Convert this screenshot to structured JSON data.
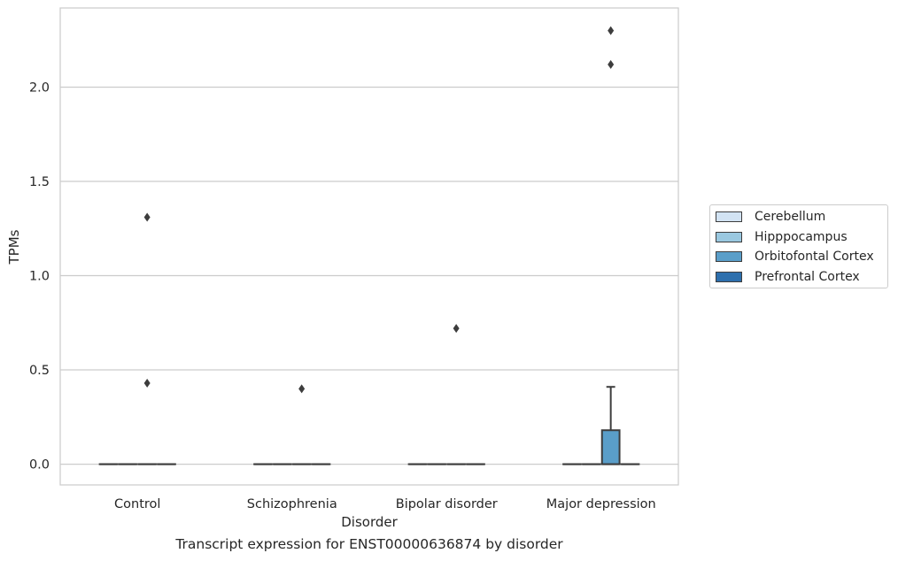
{
  "caption": "Transcript expression for ENST00000636874 by disorder",
  "legend": {
    "items": [
      {
        "label": "Cerebellum",
        "color": "#d2e3f3"
      },
      {
        "label": "Hipppocampus",
        "color": "#9ac8e0"
      },
      {
        "label": "Orbitofontal Cortex",
        "color": "#5a9ec9"
      },
      {
        "label": "Prefrontal Cortex",
        "color": "#2d6fad"
      }
    ]
  },
  "chart_data": {
    "type": "box",
    "title": "",
    "xlabel": "Disorder",
    "ylabel": "TPMs",
    "ylim": [
      -0.11,
      2.42
    ],
    "yticks": [
      0.0,
      0.5,
      1.0,
      1.5,
      2.0
    ],
    "ytick_labels": [
      "0.0",
      "0.5",
      "1.0",
      "1.5",
      "2.0"
    ],
    "grid": "horizontal",
    "legend_position": "right",
    "categories": [
      "Control",
      "Schizophrenia",
      "Bipolar disorder",
      "Major depression"
    ],
    "hue": [
      "Cerebellum",
      "Hipppocampus",
      "Orbitofontal Cortex",
      "Prefrontal Cortex"
    ],
    "boxes": [
      {
        "category": "Control",
        "hue": "Cerebellum",
        "q1": 0,
        "median": 0,
        "q3": 0,
        "whisker_low": 0,
        "whisker_high": 0,
        "outliers": []
      },
      {
        "category": "Control",
        "hue": "Hipppocampus",
        "q1": 0,
        "median": 0,
        "q3": 0,
        "whisker_low": 0,
        "whisker_high": 0,
        "outliers": []
      },
      {
        "category": "Control",
        "hue": "Orbitofontal Cortex",
        "q1": 0,
        "median": 0,
        "q3": 0,
        "whisker_low": 0,
        "whisker_high": 0,
        "outliers": [
          1.31,
          0.43
        ]
      },
      {
        "category": "Control",
        "hue": "Prefrontal Cortex",
        "q1": 0,
        "median": 0,
        "q3": 0,
        "whisker_low": 0,
        "whisker_high": 0,
        "outliers": []
      },
      {
        "category": "Schizophrenia",
        "hue": "Cerebellum",
        "q1": 0,
        "median": 0,
        "q3": 0,
        "whisker_low": 0,
        "whisker_high": 0,
        "outliers": []
      },
      {
        "category": "Schizophrenia",
        "hue": "Hipppocampus",
        "q1": 0,
        "median": 0,
        "q3": 0,
        "whisker_low": 0,
        "whisker_high": 0,
        "outliers": []
      },
      {
        "category": "Schizophrenia",
        "hue": "Orbitofontal Cortex",
        "q1": 0,
        "median": 0,
        "q3": 0,
        "whisker_low": 0,
        "whisker_high": 0,
        "outliers": [
          0.4
        ]
      },
      {
        "category": "Schizophrenia",
        "hue": "Prefrontal Cortex",
        "q1": 0,
        "median": 0,
        "q3": 0,
        "whisker_low": 0,
        "whisker_high": 0,
        "outliers": []
      },
      {
        "category": "Bipolar disorder",
        "hue": "Cerebellum",
        "q1": 0,
        "median": 0,
        "q3": 0,
        "whisker_low": 0,
        "whisker_high": 0,
        "outliers": []
      },
      {
        "category": "Bipolar disorder",
        "hue": "Hipppocampus",
        "q1": 0,
        "median": 0,
        "q3": 0,
        "whisker_low": 0,
        "whisker_high": 0,
        "outliers": []
      },
      {
        "category": "Bipolar disorder",
        "hue": "Orbitofontal Cortex",
        "q1": 0,
        "median": 0,
        "q3": 0,
        "whisker_low": 0,
        "whisker_high": 0,
        "outliers": [
          0.72
        ]
      },
      {
        "category": "Bipolar disorder",
        "hue": "Prefrontal Cortex",
        "q1": 0,
        "median": 0,
        "q3": 0,
        "whisker_low": 0,
        "whisker_high": 0,
        "outliers": []
      },
      {
        "category": "Major depression",
        "hue": "Cerebellum",
        "q1": 0,
        "median": 0,
        "q3": 0,
        "whisker_low": 0,
        "whisker_high": 0,
        "outliers": []
      },
      {
        "category": "Major depression",
        "hue": "Hipppocampus",
        "q1": 0,
        "median": 0,
        "q3": 0,
        "whisker_low": 0,
        "whisker_high": 0,
        "outliers": []
      },
      {
        "category": "Major depression",
        "hue": "Orbitofontal Cortex",
        "q1": 0,
        "median": 0,
        "q3": 0.18,
        "whisker_low": 0,
        "whisker_high": 0.41,
        "outliers": [
          2.3,
          2.12
        ]
      },
      {
        "category": "Major depression",
        "hue": "Prefrontal Cortex",
        "q1": 0,
        "median": 0,
        "q3": 0,
        "whisker_low": 0,
        "whisker_high": 0,
        "outliers": []
      }
    ]
  }
}
